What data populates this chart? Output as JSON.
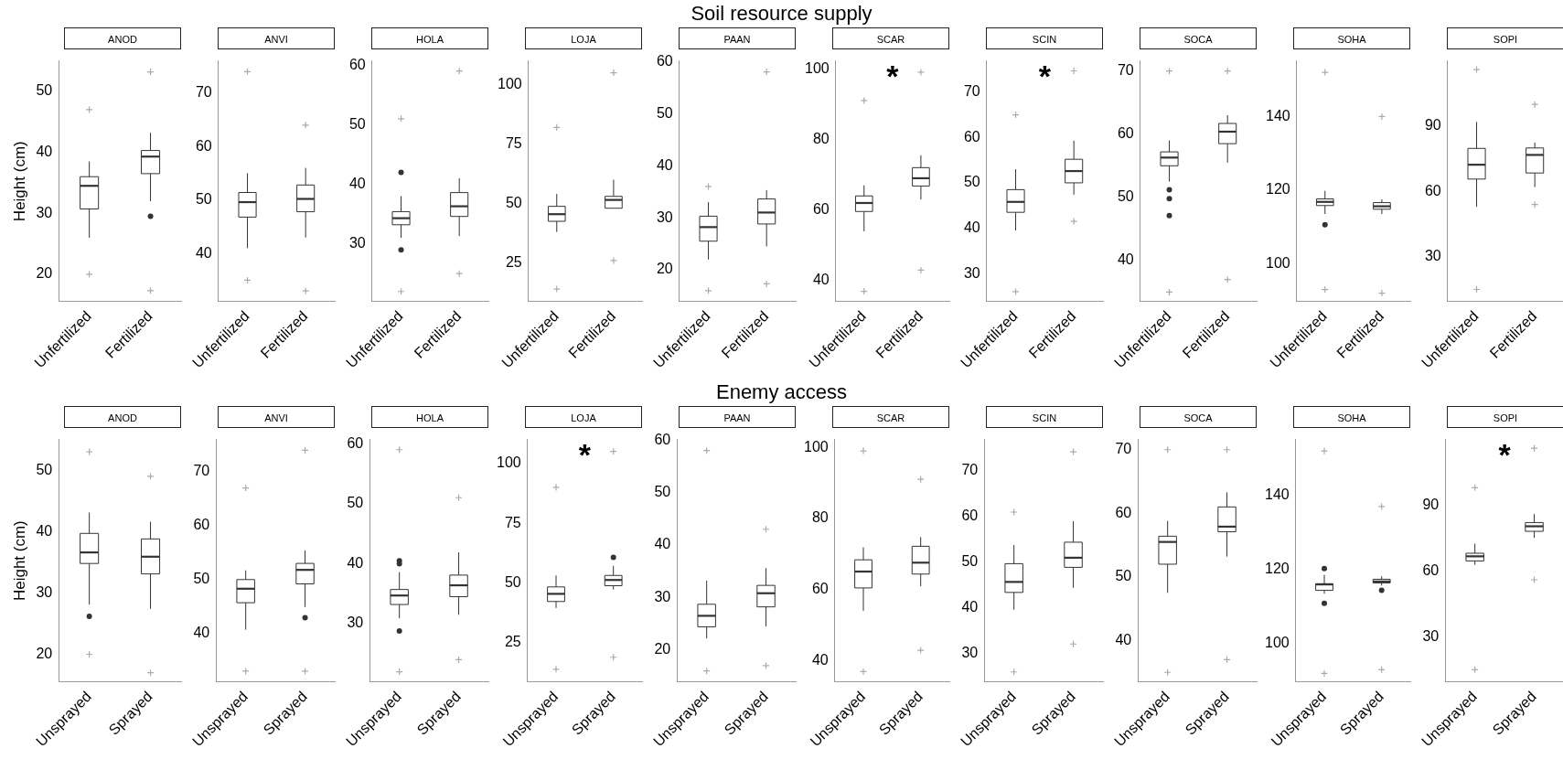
{
  "chart_data": [
    {
      "type": "box",
      "title": "ANOD",
      "ylabel": "Height (cm)",
      "annotations": [
        "Soil resource supply"
      ],
      "categories": [
        "Unfertilized",
        "Fertilized"
      ],
      "ylim": [
        15.5,
        55
      ],
      "yticks": [
        20,
        30,
        40,
        50
      ],
      "boxes": [
        {
          "low": 26,
          "q1": 30.7,
          "median": 34.5,
          "q3": 36,
          "high": 38.5
        },
        {
          "low": 32,
          "q1": 36.5,
          "median": 39.3,
          "q3": 40.3,
          "high": 43.2,
          "outliers": [
            29.5
          ]
        }
      ],
      "series": [
        {
          "type": "scatter",
          "color": "#aaaaaa",
          "marker": "cross",
          "x": [
            "Unfertilized",
            "Unfertilized",
            "Fertilized",
            "Fertilized"
          ],
          "values": [
            20,
            47,
            17.3,
            53.2
          ]
        }
      ]
    },
    {
      "type": "box",
      "title": "ANVI",
      "categories": [
        "Unfertilized",
        "Fertilized"
      ],
      "ylim": [
        31,
        76
      ],
      "yticks": [
        40,
        50,
        60,
        70
      ],
      "boxes": [
        {
          "low": 41,
          "q1": 46.8,
          "median": 49.6,
          "q3": 51.4,
          "high": 55
        },
        {
          "low": 43,
          "q1": 47.8,
          "median": 50.2,
          "q3": 52.8,
          "high": 56
        }
      ],
      "series": [
        {
          "type": "scatter",
          "color": "#aaaaaa",
          "marker": "cross",
          "x": [
            "Unfertilized",
            "Unfertilized",
            "Fertilized",
            "Fertilized"
          ],
          "values": [
            35,
            74,
            33,
            64
          ]
        }
      ]
    },
    {
      "type": "box",
      "title": "HOLA",
      "categories": [
        "Unfertilized",
        "Fertilized"
      ],
      "ylim": [
        20.3,
        60.7
      ],
      "yticks": [
        30,
        40,
        50,
        60
      ],
      "boxes": [
        {
          "low": 31,
          "q1": 33.2,
          "median": 34.3,
          "q3": 35.4,
          "high": 38,
          "outliers": [
            42,
            29
          ]
        },
        {
          "low": 31.3,
          "q1": 34.6,
          "median": 36.3,
          "q3": 38.6,
          "high": 41
        }
      ],
      "series": [
        {
          "type": "scatter",
          "color": "#aaaaaa",
          "marker": "cross",
          "x": [
            "Unfertilized",
            "Unfertilized",
            "Fertilized",
            "Fertilized"
          ],
          "values": [
            22,
            51,
            25,
            59
          ]
        }
      ]
    },
    {
      "type": "box",
      "title": "LOJA",
      "categories": [
        "Unfertilized",
        "Fertilized"
      ],
      "ylim": [
        8.7,
        110
      ],
      "yticks": [
        25,
        50,
        75,
        100
      ],
      "boxes": [
        {
          "low": 38,
          "q1": 42.5,
          "median": 45.5,
          "q3": 48.8,
          "high": 54
        },
        {
          "low": 48,
          "q1": 48,
          "median": 51.5,
          "q3": 53,
          "high": 60
        }
      ],
      "series": [
        {
          "type": "scatter",
          "color": "#aaaaaa",
          "marker": "cross",
          "x": [
            "Unfertilized",
            "Unfertilized",
            "Fertilized",
            "Fertilized"
          ],
          "values": [
            14,
            82,
            26,
            105
          ]
        }
      ]
    },
    {
      "type": "box",
      "title": "PAAN",
      "categories": [
        "Unfertilized",
        "Fertilized"
      ],
      "ylim": [
        13.9,
        60.1
      ],
      "yticks": [
        20,
        30,
        40,
        50,
        60
      ],
      "boxes": [
        {
          "low": 22,
          "q1": 25.5,
          "median": 28.2,
          "q3": 30.3,
          "high": 33
        },
        {
          "low": 24.5,
          "q1": 28.8,
          "median": 31,
          "q3": 33.6,
          "high": 35.3
        }
      ],
      "series": [
        {
          "type": "scatter",
          "color": "#aaaaaa",
          "marker": "cross",
          "x": [
            "Unfertilized",
            "Unfertilized",
            "Fertilized",
            "Fertilized"
          ],
          "values": [
            16,
            36,
            17.3,
            58
          ]
        }
      ]
    },
    {
      "type": "box",
      "title": "SCAR",
      "annotations": [
        "*"
      ],
      "categories": [
        "Unfertilized",
        "Fertilized"
      ],
      "ylim": [
        34.1,
        102.2
      ],
      "yticks": [
        40,
        60,
        80,
        100
      ],
      "boxes": [
        {
          "low": 54,
          "q1": 59.6,
          "median": 62,
          "q3": 64,
          "high": 67
        },
        {
          "low": 63,
          "q1": 66.8,
          "median": 69,
          "q3": 72,
          "high": 75.5
        }
      ],
      "series": [
        {
          "type": "scatter",
          "color": "#aaaaaa",
          "marker": "cross",
          "x": [
            "Unfertilized",
            "Unfertilized",
            "Fertilized",
            "Fertilized"
          ],
          "values": [
            37,
            91,
            43,
            99
          ]
        }
      ]
    },
    {
      "type": "box",
      "title": "SCIN",
      "annotations": [
        "*"
      ],
      "categories": [
        "Unfertilized",
        "Fertilized"
      ],
      "ylim": [
        23.8,
        76.9
      ],
      "yticks": [
        30,
        40,
        50,
        60,
        70
      ],
      "boxes": [
        {
          "low": 39.5,
          "q1": 43.5,
          "median": 45.8,
          "q3": 48.5,
          "high": 53
        },
        {
          "low": 47.4,
          "q1": 50,
          "median": 52.6,
          "q3": 55.2,
          "high": 59.3
        }
      ],
      "series": [
        {
          "type": "scatter",
          "color": "#aaaaaa",
          "marker": "cross",
          "x": [
            "Unfertilized",
            "Unfertilized",
            "Fertilized",
            "Fertilized"
          ],
          "values": [
            26,
            65,
            41.5,
            74.7
          ]
        }
      ]
    },
    {
      "type": "box",
      "title": "SOCA",
      "categories": [
        "Unfertilized",
        "Fertilized"
      ],
      "ylim": [
        33.5,
        71.6
      ],
      "yticks": [
        40,
        50,
        60,
        70
      ],
      "boxes": [
        {
          "low": 52.5,
          "q1": 55,
          "median": 56.3,
          "q3": 57.2,
          "high": 59,
          "outliers": [
            51.2,
            49.8,
            47.1
          ]
        },
        {
          "low": 55.5,
          "q1": 58.5,
          "median": 60.4,
          "q3": 61.7,
          "high": 63
        }
      ],
      "series": [
        {
          "type": "scatter",
          "color": "#aaaaaa",
          "marker": "cross",
          "x": [
            "Unfertilized",
            "Unfertilized",
            "Fertilized",
            "Fertilized"
          ],
          "values": [
            35,
            70,
            37,
            70
          ]
        }
      ]
    },
    {
      "type": "box",
      "title": "SOHA",
      "categories": [
        "Unfertilized",
        "Fertilized"
      ],
      "ylim": [
        89.7,
        155.1
      ],
      "yticks": [
        100,
        120,
        140
      ],
      "boxes": [
        {
          "low": 113.5,
          "q1": 115.8,
          "median": 116.8,
          "q3": 117.6,
          "high": 119.8,
          "outliers": [
            110.6
          ]
        },
        {
          "low": 113.5,
          "q1": 114.8,
          "median": 115.6,
          "q3": 116.6,
          "high": 117.5
        }
      ],
      "series": [
        {
          "type": "scatter",
          "color": "#aaaaaa",
          "marker": "cross",
          "x": [
            "Unfertilized",
            "Unfertilized",
            "Fertilized",
            "Fertilized"
          ],
          "values": [
            93,
            152,
            92,
            140
          ]
        }
      ]
    },
    {
      "type": "box",
      "title": "SOPI",
      "categories": [
        "Unfertilized",
        "Fertilized"
      ],
      "ylim": [
        9.4,
        120
      ],
      "yticks": [
        30,
        60,
        90
      ],
      "boxes": [
        {
          "low": 53,
          "q1": 65.7,
          "median": 72.3,
          "q3": 79.8,
          "high": 92
        },
        {
          "low": 62,
          "q1": 68.5,
          "median": 76.8,
          "q3": 80,
          "high": 82.5
        }
      ],
      "series": [
        {
          "type": "scatter",
          "color": "#aaaaaa",
          "marker": "cross",
          "x": [
            "Unfertilized",
            "Unfertilized",
            "Fertilized",
            "Fertilized"
          ],
          "values": [
            15,
            116,
            54,
            100
          ]
        }
      ]
    },
    {
      "type": "box",
      "title": "ANOD",
      "ylabel": "Height (cm)",
      "annotations": [
        "Enemy access"
      ],
      "categories": [
        "Unsprayed",
        "Sprayed"
      ],
      "ylim": [
        15.5,
        55
      ],
      "yticks": [
        20,
        30,
        40,
        50
      ],
      "boxes": [
        {
          "low": 28.1,
          "q1": 34.8,
          "median": 36.6,
          "q3": 39.7,
          "high": 43.1,
          "outliers": [
            26.2
          ]
        },
        {
          "low": 27.4,
          "q1": 33.1,
          "median": 35.9,
          "q3": 38.8,
          "high": 41.6
        }
      ],
      "series": [
        {
          "type": "scatter",
          "color": "#aaaaaa",
          "marker": "cross",
          "x": [
            "Unsprayed",
            "Unsprayed",
            "Sprayed",
            "Sprayed"
          ],
          "values": [
            20,
            53,
            17,
            49
          ]
        }
      ]
    },
    {
      "type": "box",
      "title": "ANVI",
      "categories": [
        "Unsprayed",
        "Sprayed"
      ],
      "ylim": [
        31,
        76
      ],
      "yticks": [
        40,
        50,
        60,
        70
      ],
      "boxes": [
        {
          "low": 40.7,
          "q1": 45.7,
          "median": 48.3,
          "q3": 50,
          "high": 51.7
        },
        {
          "low": 44.9,
          "q1": 49.2,
          "median": 51.8,
          "q3": 53,
          "high": 55.4,
          "outliers": [
            42.9
          ]
        }
      ],
      "series": [
        {
          "type": "scatter",
          "color": "#aaaaaa",
          "marker": "cross",
          "x": [
            "Unsprayed",
            "Unsprayed",
            "Sprayed",
            "Sprayed"
          ],
          "values": [
            33,
            67,
            33,
            74
          ]
        }
      ]
    },
    {
      "type": "box",
      "title": "HOLA",
      "categories": [
        "Unsprayed",
        "Sprayed"
      ],
      "ylim": [
        20.3,
        60.7
      ],
      "yticks": [
        30,
        40,
        50,
        60
      ],
      "boxes": [
        {
          "low": 30.9,
          "q1": 33.2,
          "median": 34.7,
          "q3": 35.7,
          "high": 38.6,
          "outliers": [
            40.5,
            40,
            28.8
          ]
        },
        {
          "low": 31.5,
          "q1": 34.5,
          "median": 36.4,
          "q3": 38.1,
          "high": 41.9
        }
      ],
      "series": [
        {
          "type": "scatter",
          "color": "#aaaaaa",
          "marker": "cross",
          "x": [
            "Unsprayed",
            "Unsprayed",
            "Sprayed",
            "Sprayed"
          ],
          "values": [
            22,
            59,
            24,
            51
          ]
        }
      ]
    },
    {
      "type": "box",
      "title": "LOJA",
      "annotations": [
        "*"
      ],
      "categories": [
        "Unsprayed",
        "Sprayed"
      ],
      "ylim": [
        8.7,
        110
      ],
      "yticks": [
        25,
        50,
        75,
        100
      ],
      "boxes": [
        {
          "low": 39.6,
          "q1": 42.3,
          "median": 45.5,
          "q3": 48.4,
          "high": 53.2
        },
        {
          "low": 47.3,
          "q1": 48.9,
          "median": 51.3,
          "q3": 53.2,
          "high": 57.2,
          "outliers": [
            60.7
          ]
        }
      ],
      "series": [
        {
          "type": "scatter",
          "color": "#aaaaaa",
          "marker": "cross",
          "x": [
            "Unsprayed",
            "Unsprayed",
            "Sprayed",
            "Sprayed"
          ],
          "values": [
            14,
            90,
            19,
            105
          ]
        }
      ]
    },
    {
      "type": "box",
      "title": "PAAN",
      "categories": [
        "Unsprayed",
        "Sprayed"
      ],
      "ylim": [
        13.9,
        60.1
      ],
      "yticks": [
        20,
        30,
        40,
        50,
        60
      ],
      "boxes": [
        {
          "low": 22.2,
          "q1": 24.4,
          "median": 26.5,
          "q3": 28.7,
          "high": 33.2
        },
        {
          "low": 24.5,
          "q1": 28.2,
          "median": 30.8,
          "q3": 32.3,
          "high": 35.6
        }
      ],
      "series": [
        {
          "type": "scatter",
          "color": "#aaaaaa",
          "marker": "cross",
          "x": [
            "Unsprayed",
            "Unsprayed",
            "Sprayed",
            "Sprayed"
          ],
          "values": [
            16,
            58,
            17,
            43
          ]
        }
      ]
    },
    {
      "type": "box",
      "title": "SCAR",
      "categories": [
        "Unsprayed",
        "Sprayed"
      ],
      "ylim": [
        34.1,
        102.2
      ],
      "yticks": [
        40,
        60,
        80,
        100
      ],
      "boxes": [
        {
          "low": 54.1,
          "q1": 60.5,
          "median": 65.1,
          "q3": 68.4,
          "high": 71.9
        },
        {
          "low": 61,
          "q1": 64.4,
          "median": 67.6,
          "q3": 72.2,
          "high": 74.8
        }
      ],
      "series": [
        {
          "type": "scatter",
          "color": "#aaaaaa",
          "marker": "cross",
          "x": [
            "Unsprayed",
            "Unsprayed",
            "Sprayed",
            "Sprayed"
          ],
          "values": [
            37,
            99,
            43,
            91
          ]
        }
      ]
    },
    {
      "type": "box",
      "title": "SCIN",
      "categories": [
        "Unsprayed",
        "Sprayed"
      ],
      "ylim": [
        23.8,
        76.9
      ],
      "yticks": [
        30,
        40,
        50,
        60,
        70
      ],
      "boxes": [
        {
          "low": 39.6,
          "q1": 43.4,
          "median": 45.7,
          "q3": 49.7,
          "high": 53.8
        },
        {
          "low": 44.4,
          "q1": 48.9,
          "median": 51,
          "q3": 54.4,
          "high": 59
        }
      ],
      "series": [
        {
          "type": "scatter",
          "color": "#aaaaaa",
          "marker": "cross",
          "x": [
            "Unsprayed",
            "Unsprayed",
            "Sprayed",
            "Sprayed"
          ],
          "values": [
            26,
            61,
            32.1,
            74.2
          ]
        }
      ]
    },
    {
      "type": "box",
      "title": "SOCA",
      "categories": [
        "Unsprayed",
        "Sprayed"
      ],
      "ylim": [
        33.5,
        71.6
      ],
      "yticks": [
        40,
        50,
        60,
        70
      ],
      "boxes": [
        {
          "low": 47.5,
          "q1": 52,
          "median": 55.5,
          "q3": 56.4,
          "high": 58.8
        },
        {
          "low": 53.2,
          "q1": 57.1,
          "median": 57.9,
          "q3": 61,
          "high": 63.3
        }
      ],
      "series": [
        {
          "type": "scatter",
          "color": "#aaaaaa",
          "marker": "cross",
          "x": [
            "Unsprayed",
            "Unsprayed",
            "Sprayed",
            "Sprayed"
          ],
          "values": [
            35,
            70,
            37,
            70
          ]
        }
      ]
    },
    {
      "type": "box",
      "title": "SOHA",
      "categories": [
        "Unsprayed",
        "Sprayed"
      ],
      "ylim": [
        89.7,
        155.1
      ],
      "yticks": [
        100,
        120,
        140
      ],
      "boxes": [
        {
          "low": 113.5,
          "q1": 114.4,
          "median": 116,
          "q3": 116.2,
          "high": 118.6,
          "outliers": [
            120.3,
            110.9
          ]
        },
        {
          "low": 115.7,
          "q1": 116.4,
          "median": 116.8,
          "q3": 117.4,
          "high": 118.2,
          "outliers": [
            114.4
          ]
        }
      ],
      "series": [
        {
          "type": "scatter",
          "color": "#aaaaaa",
          "marker": "cross",
          "x": [
            "Unsprayed",
            "Unsprayed",
            "Sprayed",
            "Sprayed"
          ],
          "values": [
            92,
            152,
            93,
            137
          ]
        }
      ]
    },
    {
      "type": "box",
      "title": "SOPI",
      "annotations": [
        "*"
      ],
      "categories": [
        "Unsprayed",
        "Sprayed"
      ],
      "ylim": [
        9.4,
        120
      ],
      "yticks": [
        30,
        60,
        90
      ],
      "boxes": [
        {
          "low": 62.8,
          "q1": 64.6,
          "median": 66.7,
          "q3": 68.1,
          "high": 72.5
        },
        {
          "low": 75.1,
          "q1": 78.1,
          "median": 80.4,
          "q3": 82.1,
          "high": 86
        }
      ],
      "series": [
        {
          "type": "scatter",
          "color": "#aaaaaa",
          "marker": "cross",
          "x": [
            "Unsprayed",
            "Unsprayed",
            "Sprayed",
            "Sprayed"
          ],
          "values": [
            15,
            98,
            56,
            116
          ]
        }
      ]
    }
  ]
}
